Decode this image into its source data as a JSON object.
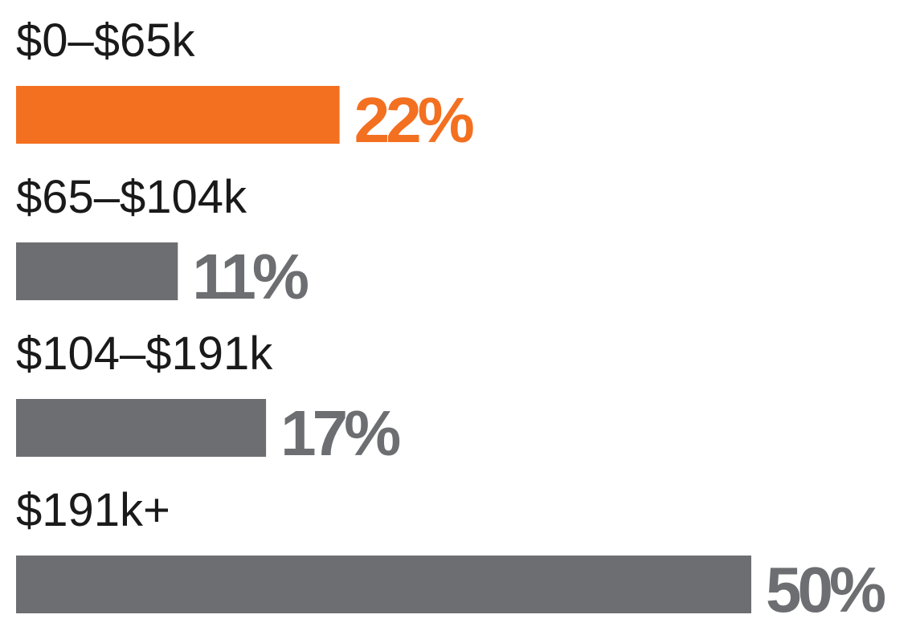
{
  "chart_data": {
    "type": "bar",
    "orientation": "horizontal",
    "categories": [
      "$0–$65k",
      "$65–$104k",
      "$104–$191k",
      "$191k+"
    ],
    "values": [
      22,
      11,
      17,
      50
    ],
    "value_labels": [
      "22%",
      "11%",
      "17%",
      "50%"
    ],
    "xlim": [
      0,
      50
    ],
    "grid": false,
    "legend": "none",
    "colors": [
      "#f37021",
      "#6d6e71",
      "#6d6e71",
      "#6d6e71"
    ]
  }
}
